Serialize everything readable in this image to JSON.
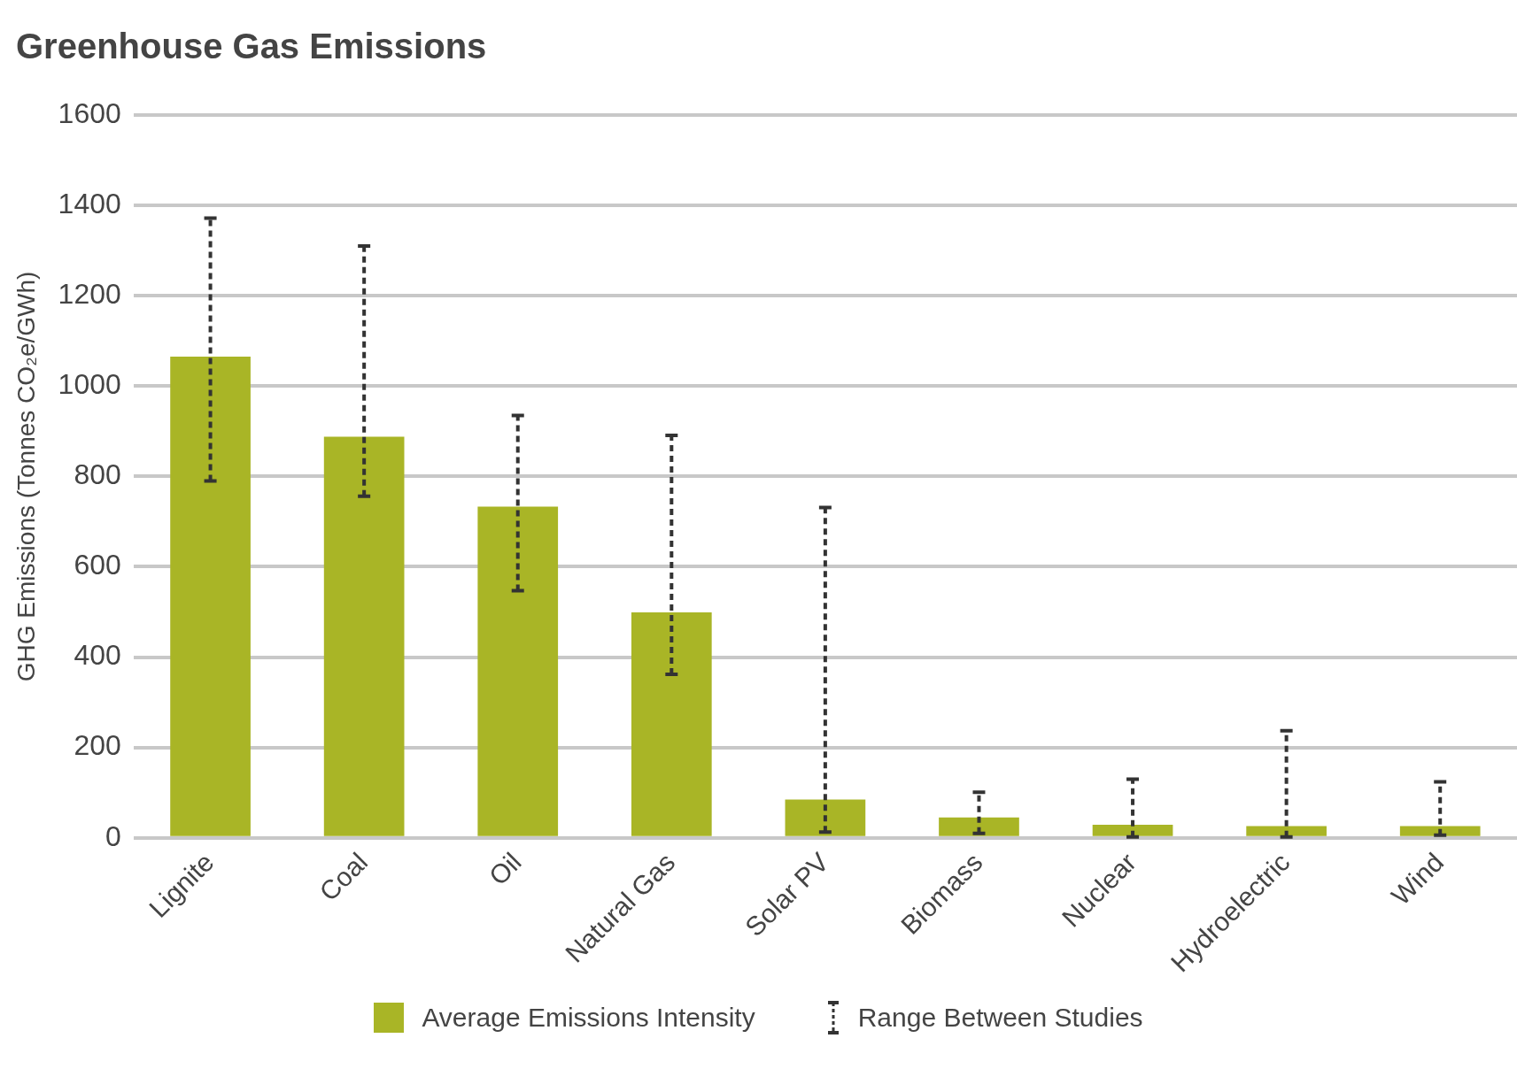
{
  "chart_data": {
    "type": "bar",
    "title": "Greenhouse Gas Emissions",
    "ylabel": "GHG Emissions (Tonnes CO₂e/GWh)",
    "categories": [
      "Lignite",
      "Coal",
      "Oil",
      "Natural Gas",
      "Solar PV",
      "Biomass",
      "Nuclear",
      "Hydroelectric",
      "Wind"
    ],
    "series": [
      {
        "name": "Average Emissions Intensity",
        "color": "#a9b526",
        "values": [
          1065,
          888,
          733,
          499,
          85,
          45,
          29,
          26,
          26
        ],
        "errors": [
          [
            790,
            1372
          ],
          [
            756,
            1310
          ],
          [
            547,
            935
          ],
          [
            362,
            891
          ],
          [
            13,
            731
          ],
          [
            10,
            101
          ],
          [
            2,
            130
          ],
          [
            2,
            237
          ],
          [
            6,
            124
          ]
        ]
      }
    ],
    "annotations": [
      "Range Between Studies"
    ],
    "ylim": [
      0,
      1600
    ],
    "yticks": [
      0,
      200,
      400,
      600,
      800,
      1000,
      1200,
      1400,
      1600
    ],
    "grid": "y",
    "legend": "bottom"
  }
}
